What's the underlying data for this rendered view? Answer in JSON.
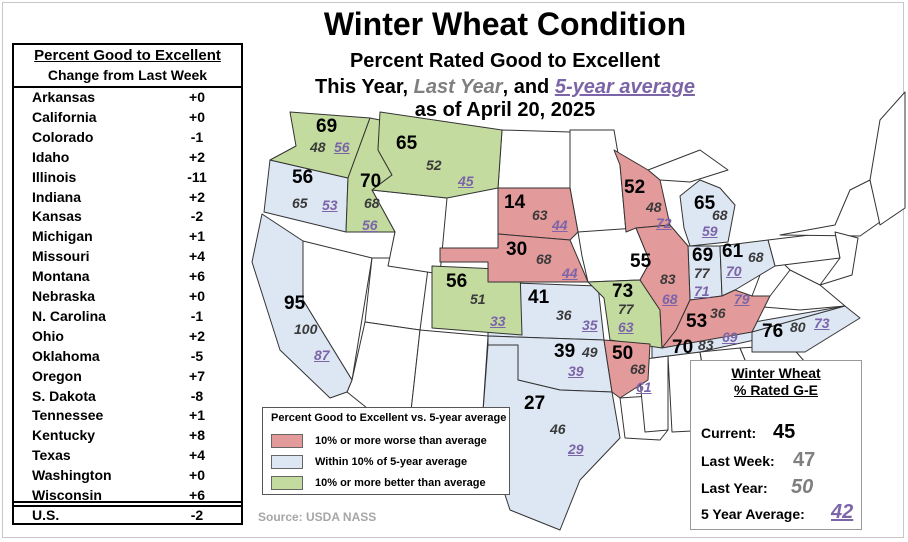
{
  "title": "Winter Wheat Condition",
  "subtitle": "Percent Rated Good to Excellent",
  "line3": {
    "pre": "This Year, ",
    "last_year": "Last Year",
    "mid": ", and ",
    "five_year": "5-year average"
  },
  "date_line": "as of April 20, 2025",
  "change_table": {
    "header1": "Percent Good to Excellent",
    "header2": "Change from Last Week",
    "rows": [
      {
        "state": "Arkansas",
        "change": "+0"
      },
      {
        "state": "California",
        "change": "+0"
      },
      {
        "state": "Colorado",
        "change": "-1"
      },
      {
        "state": "Idaho",
        "change": "+2"
      },
      {
        "state": "Illinois",
        "change": "-11"
      },
      {
        "state": "Indiana",
        "change": "+2"
      },
      {
        "state": "Kansas",
        "change": "-2"
      },
      {
        "state": "Michigan",
        "change": "+1"
      },
      {
        "state": "Missouri",
        "change": "+4"
      },
      {
        "state": "Montana",
        "change": "+6"
      },
      {
        "state": "Nebraska",
        "change": "+0"
      },
      {
        "state": "N. Carolina",
        "change": "-1"
      },
      {
        "state": "Ohio",
        "change": "+2"
      },
      {
        "state": "Oklahoma",
        "change": "-5"
      },
      {
        "state": "Oregon",
        "change": "+7"
      },
      {
        "state": "S. Dakota",
        "change": "-8"
      },
      {
        "state": "Tennessee",
        "change": "+1"
      },
      {
        "state": "Kentucky",
        "change": "+8"
      },
      {
        "state": "Texas",
        "change": "+4"
      },
      {
        "state": "Washington",
        "change": "+0"
      },
      {
        "state": "Wisconsin",
        "change": "+6"
      }
    ],
    "total": {
      "state": "U.S.",
      "change": "-2"
    }
  },
  "colors": {
    "worse": "#e39a9a",
    "within": "#dde6f3",
    "better": "#c4dba0",
    "five_year": "#7b65a8",
    "last_year": "#7f7f7f"
  },
  "states": {
    "WA": {
      "this_year": "69",
      "last_year": "48",
      "five_year": "56"
    },
    "OR": {
      "this_year": "56",
      "last_year": "65",
      "five_year": "53"
    },
    "ID": {
      "this_year": "70",
      "last_year": "68",
      "five_year": "56"
    },
    "MT": {
      "this_year": "65",
      "last_year": "52",
      "five_year": "45"
    },
    "CA": {
      "this_year": "95",
      "last_year": "100",
      "five_year": "87"
    },
    "SD": {
      "this_year": "14",
      "last_year": "63",
      "five_year": "44"
    },
    "NE": {
      "this_year": "30",
      "last_year": "68",
      "five_year": "44"
    },
    "CO": {
      "this_year": "56",
      "last_year": "51",
      "five_year": "33"
    },
    "KS": {
      "this_year": "41",
      "last_year": "36",
      "five_year": "35"
    },
    "OK": {
      "this_year": "39",
      "last_year": "49",
      "five_year": "39"
    },
    "TX": {
      "this_year": "27",
      "last_year": "46",
      "five_year": "29"
    },
    "MO": {
      "this_year": "73",
      "last_year": "77",
      "five_year": "63"
    },
    "AR": {
      "this_year": "50",
      "last_year": "68",
      "five_year": "61"
    },
    "WI": {
      "this_year": "52",
      "last_year": "48",
      "five_year": "72"
    },
    "IL": {
      "this_year": "55",
      "last_year": "83",
      "five_year": "68"
    },
    "MI": {
      "this_year": "65",
      "last_year": "68",
      "five_year": "59"
    },
    "IN": {
      "this_year": "69",
      "last_year": "77",
      "five_year": "71"
    },
    "OH": {
      "this_year": "61",
      "last_year": "68",
      "five_year": "70"
    },
    "KY": {
      "this_year": "53",
      "last_year": "36",
      "five_year": "79"
    },
    "TN": {
      "this_year": "70",
      "last_year": "83",
      "five_year": "69"
    },
    "NC": {
      "this_year": "76",
      "last_year": "80",
      "five_year": "73"
    }
  },
  "legend": {
    "title": "Percent Good to Excellent vs. 5-year average",
    "items": [
      {
        "label": "10% or more worse than average",
        "color": "#e39a9a"
      },
      {
        "label": "Within 10% of 5-year average",
        "color": "#dde6f3"
      },
      {
        "label": "10% or more better than average",
        "color": "#c4dba0"
      }
    ]
  },
  "source": "Source: USDA NASS",
  "summary": {
    "title1": "Winter Wheat",
    "title2": "% Rated G-E",
    "current_label": "Current:",
    "current": "45",
    "last_week_label": "Last Week:",
    "last_week": "47",
    "last_year_label": "Last Year:",
    "last_year": "50",
    "five_year_label": "5 Year Average:",
    "five_year": "42"
  }
}
